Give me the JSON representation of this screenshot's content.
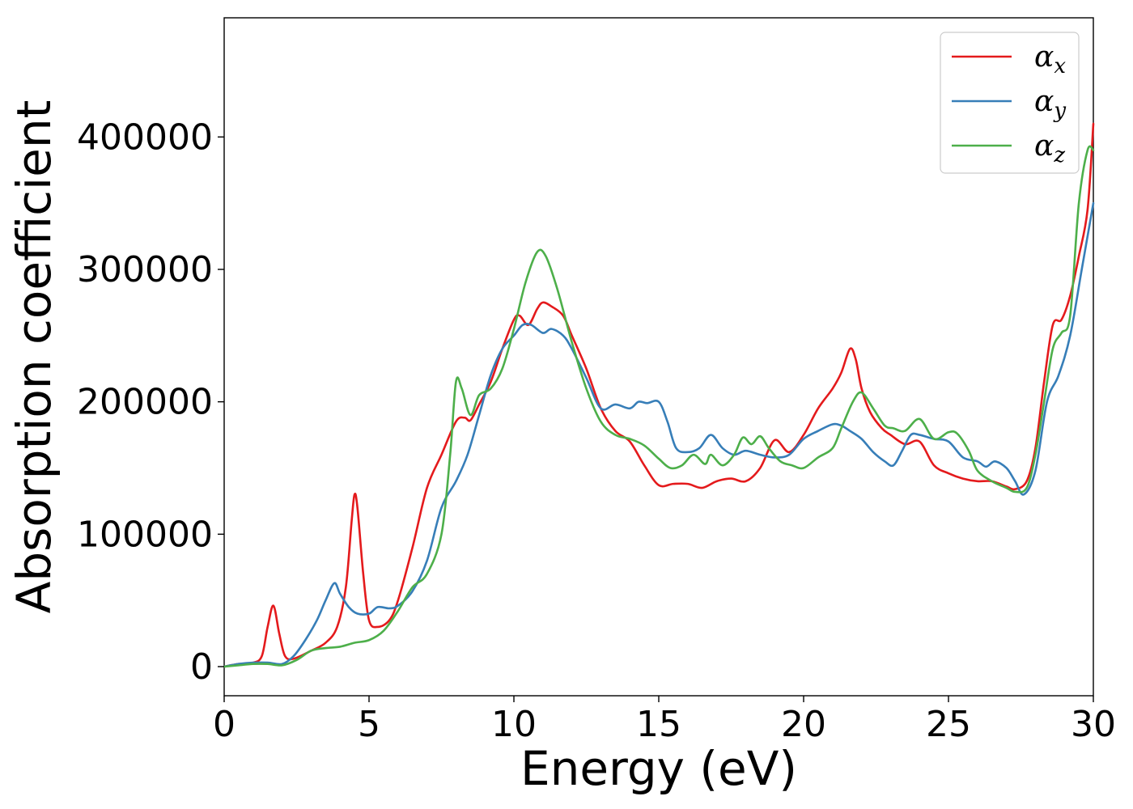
{
  "chart_data": {
    "type": "line",
    "title": "",
    "xlabel": "Energy (eV)",
    "ylabel": "Absorption coefficient",
    "xlim": [
      0,
      30
    ],
    "ylim": [
      -22000,
      490000
    ],
    "xticks": [
      0,
      5,
      10,
      15,
      20,
      25,
      30
    ],
    "xtick_labels": [
      "0",
      "5",
      "10",
      "15",
      "20",
      "25",
      "30"
    ],
    "yticks": [
      0,
      100000,
      200000,
      300000,
      400000
    ],
    "ytick_labels": [
      "0",
      "100000",
      "200000",
      "300000",
      "400000"
    ],
    "grid": false,
    "legend_position": "top-right",
    "series": [
      {
        "name": "α_x",
        "legend_symbol": "α",
        "legend_subscript": "x",
        "color": "#e41a1c",
        "x": [
          0,
          0.5,
          1.0,
          1.3,
          1.5,
          1.7,
          1.9,
          2.1,
          2.4,
          3.0,
          3.5,
          3.9,
          4.2,
          4.4,
          4.5,
          4.6,
          4.8,
          5.0,
          5.3,
          5.7,
          6.0,
          6.5,
          7.0,
          7.5,
          8.0,
          8.3,
          8.5,
          8.8,
          9.2,
          9.6,
          10.0,
          10.2,
          10.5,
          10.8,
          11.0,
          11.3,
          11.7,
          12.0,
          12.5,
          13.0,
          13.5,
          14.0,
          14.5,
          15.0,
          15.5,
          16.0,
          16.5,
          17.0,
          17.5,
          18.0,
          18.5,
          19.0,
          19.5,
          20.0,
          20.5,
          21.0,
          21.3,
          21.6,
          21.8,
          22.0,
          22.3,
          22.7,
          23.0,
          23.5,
          24.0,
          24.5,
          25.0,
          25.5,
          26.0,
          26.5,
          27.0,
          27.3,
          27.7,
          28.0,
          28.3,
          28.6,
          28.9,
          29.2,
          29.5,
          29.8,
          30.0
        ],
        "y": [
          0,
          2000,
          3000,
          8000,
          30000,
          46000,
          25000,
          8000,
          6000,
          12000,
          18000,
          30000,
          60000,
          110000,
          130000,
          120000,
          70000,
          35000,
          30000,
          35000,
          50000,
          90000,
          135000,
          160000,
          185000,
          188000,
          186000,
          198000,
          215000,
          240000,
          262000,
          265000,
          258000,
          270000,
          275000,
          272000,
          265000,
          250000,
          225000,
          195000,
          178000,
          170000,
          152000,
          137000,
          138000,
          138000,
          135000,
          140000,
          142000,
          140000,
          150000,
          171000,
          162000,
          175000,
          195000,
          210000,
          222000,
          240000,
          232000,
          210000,
          192000,
          180000,
          175000,
          168000,
          170000,
          152000,
          146000,
          142000,
          140000,
          140000,
          136000,
          134000,
          140000,
          165000,
          215000,
          258000,
          262000,
          280000,
          310000,
          345000,
          410000
        ]
      },
      {
        "name": "α_y",
        "legend_symbol": "α",
        "legend_subscript": "y",
        "color": "#377eb8",
        "x": [
          0,
          0.5,
          1.0,
          1.5,
          2.0,
          2.4,
          2.8,
          3.2,
          3.5,
          3.8,
          4.0,
          4.3,
          4.6,
          5.0,
          5.3,
          5.7,
          6.0,
          6.5,
          7.0,
          7.5,
          8.0,
          8.4,
          8.8,
          9.2,
          9.6,
          10.0,
          10.3,
          10.6,
          11.0,
          11.3,
          11.7,
          12.0,
          12.5,
          13.0,
          13.5,
          14.0,
          14.3,
          14.6,
          15.0,
          15.3,
          15.6,
          16.0,
          16.4,
          16.8,
          17.2,
          17.6,
          18.0,
          18.5,
          19.0,
          19.5,
          20.0,
          20.5,
          21.0,
          21.3,
          21.6,
          22.0,
          22.4,
          22.8,
          23.1,
          23.4,
          23.7,
          24.0,
          24.5,
          25.0,
          25.5,
          26.0,
          26.3,
          26.6,
          27.0,
          27.3,
          27.6,
          28.0,
          28.4,
          28.8,
          29.2,
          29.6,
          30.0
        ],
        "y": [
          0,
          2000,
          3000,
          3000,
          2000,
          8000,
          20000,
          35000,
          50000,
          63000,
          55000,
          45000,
          40000,
          40000,
          45000,
          44000,
          46000,
          57000,
          80000,
          120000,
          140000,
          160000,
          190000,
          220000,
          240000,
          250000,
          258000,
          258000,
          252000,
          255000,
          250000,
          240000,
          218000,
          195000,
          198000,
          195000,
          200000,
          199000,
          200000,
          185000,
          165000,
          162000,
          165000,
          175000,
          165000,
          160000,
          163000,
          160000,
          158000,
          160000,
          172000,
          178000,
          183000,
          182000,
          178000,
          172000,
          162000,
          155000,
          152000,
          163000,
          175000,
          175000,
          172000,
          170000,
          158000,
          155000,
          151000,
          155000,
          150000,
          140000,
          130000,
          148000,
          200000,
          220000,
          250000,
          300000,
          350000
        ]
      },
      {
        "name": "α_z",
        "legend_symbol": "α",
        "legend_subscript": "z",
        "color": "#4daf4a",
        "x": [
          0,
          0.5,
          1.0,
          1.5,
          2.0,
          2.5,
          3.0,
          3.5,
          4.0,
          4.5,
          5.0,
          5.5,
          6.0,
          6.5,
          7.0,
          7.5,
          7.8,
          8.0,
          8.2,
          8.5,
          8.8,
          9.2,
          9.6,
          10.0,
          10.4,
          10.8,
          11.1,
          11.5,
          12.0,
          12.5,
          13.0,
          13.5,
          14.0,
          14.5,
          15.0,
          15.4,
          15.8,
          16.2,
          16.6,
          16.8,
          17.2,
          17.6,
          17.9,
          18.2,
          18.5,
          18.8,
          19.2,
          19.6,
          20.0,
          20.5,
          21.0,
          21.3,
          21.7,
          22.0,
          22.4,
          22.8,
          23.1,
          23.5,
          24.0,
          24.5,
          25.0,
          25.3,
          25.7,
          26.0,
          26.5,
          27.0,
          27.3,
          27.7,
          28.0,
          28.3,
          28.6,
          28.9,
          29.2,
          29.5,
          29.8,
          30.0
        ],
        "y": [
          0,
          1000,
          2000,
          2000,
          1000,
          5000,
          12000,
          14000,
          15000,
          18000,
          20000,
          27000,
          42000,
          60000,
          70000,
          100000,
          160000,
          215000,
          210000,
          190000,
          205000,
          210000,
          225000,
          255000,
          290000,
          313000,
          310000,
          285000,
          245000,
          210000,
          185000,
          175000,
          172000,
          167000,
          157000,
          150000,
          152000,
          160000,
          153000,
          160000,
          152000,
          160000,
          173000,
          168000,
          174000,
          165000,
          155000,
          152000,
          150000,
          158000,
          165000,
          180000,
          200000,
          207000,
          195000,
          182000,
          180000,
          178000,
          187000,
          172000,
          177000,
          176000,
          163000,
          148000,
          140000,
          135000,
          132000,
          135000,
          160000,
          200000,
          240000,
          252000,
          265000,
          350000,
          390000,
          390000
        ]
      }
    ]
  }
}
